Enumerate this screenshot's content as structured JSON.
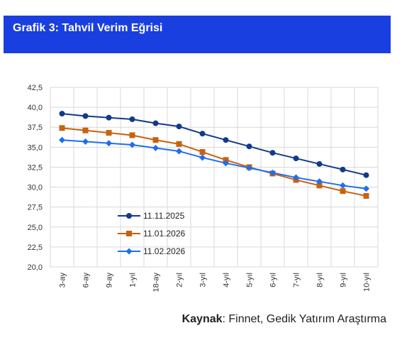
{
  "header": {
    "title": "Grafik 3: Tahvil Verim Eğrisi"
  },
  "source": {
    "label": "Kaynak",
    "text": ": Finnet, Gedik Yatırım Araştırma"
  },
  "chart_data": {
    "type": "line",
    "title": "",
    "xlabel": "",
    "ylabel": "",
    "ylim": [
      20.0,
      42.5
    ],
    "yticks": [
      "20,0",
      "22,5",
      "25,0",
      "27,5",
      "30,0",
      "32,5",
      "35,0",
      "37,5",
      "40,0",
      "42,5"
    ],
    "categories": [
      "3-ay",
      "6-ay",
      "9-ay",
      "1-yıl",
      "18-ay",
      "2-yıl",
      "3-yıl",
      "4-yıl",
      "5-yıl",
      "6-yıl",
      "7-yıl",
      "8-yıl",
      "9-yıl",
      "10-yıl"
    ],
    "grid": true,
    "legend_position": "bottom-left",
    "series": [
      {
        "name": "11.11.2025",
        "color": "#123a8a",
        "marker": "circle",
        "values": [
          39.2,
          38.9,
          38.7,
          38.5,
          38.0,
          37.6,
          36.7,
          35.9,
          35.1,
          34.3,
          33.6,
          32.9,
          32.2,
          31.5
        ]
      },
      {
        "name": "11.01.2026",
        "color": "#c9610e",
        "marker": "square",
        "values": [
          37.4,
          37.1,
          36.8,
          36.5,
          35.9,
          35.4,
          34.4,
          33.4,
          32.5,
          31.7,
          30.9,
          30.2,
          29.5,
          28.9
        ]
      },
      {
        "name": "11.02.2026",
        "color": "#1f6ef0",
        "marker": "diamond",
        "values": [
          35.9,
          35.7,
          35.5,
          35.3,
          34.9,
          34.5,
          33.7,
          33.0,
          32.4,
          31.8,
          31.2,
          30.7,
          30.2,
          29.8
        ]
      }
    ]
  }
}
